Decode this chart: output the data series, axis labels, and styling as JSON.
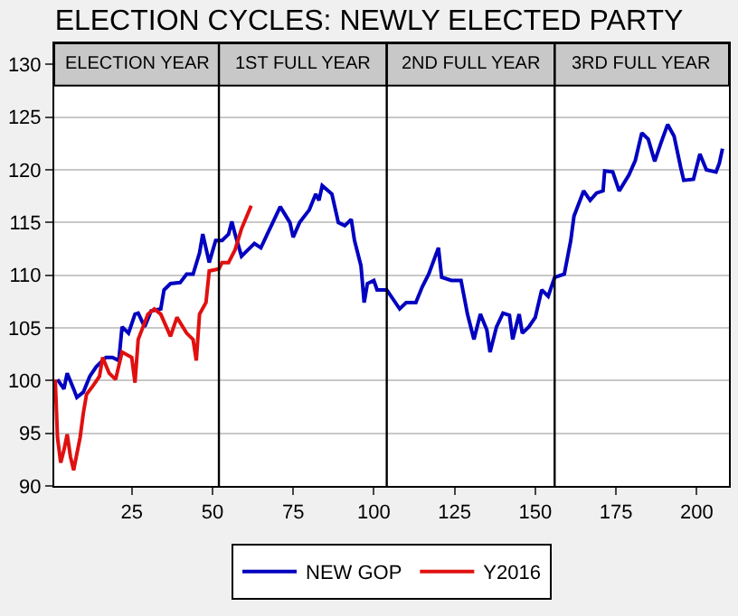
{
  "chart_data": {
    "type": "line",
    "title": "ELECTION CYCLES: NEWLY ELECTED PARTY",
    "xlim": [
      1,
      210
    ],
    "xticks": [
      25,
      50,
      75,
      100,
      125,
      150,
      175,
      200
    ],
    "ylim": [
      90,
      132
    ],
    "yticks": [
      90,
      95,
      100,
      105,
      110,
      115,
      120,
      125,
      130
    ],
    "grid": "y",
    "legend": "bottom",
    "line_style": "solid",
    "marker": "none",
    "series": [
      {
        "name": "NEW GOP",
        "color": "#0000c0",
        "x": [
          2,
          4,
          5,
          7,
          8,
          10,
          12,
          14,
          17,
          19,
          21,
          22,
          24,
          26,
          27,
          29,
          31,
          34,
          35,
          37,
          40,
          42,
          44,
          46,
          47,
          49,
          51,
          53,
          55,
          56,
          57,
          59,
          61,
          63,
          65,
          67,
          71,
          74,
          75,
          77,
          80,
          82,
          83,
          84,
          87,
          89,
          91,
          93,
          94,
          96,
          97,
          98,
          100,
          101,
          104,
          108,
          110,
          113,
          115,
          117,
          120,
          121,
          124,
          127,
          129,
          131,
          133,
          135,
          136,
          138,
          140,
          142,
          143,
          145,
          146,
          148,
          150,
          152,
          154,
          156,
          159,
          161,
          162,
          165,
          167,
          169,
          171,
          171.5,
          174,
          176,
          179,
          181,
          183,
          185,
          187,
          189,
          191,
          193,
          195,
          196,
          199,
          201,
          203,
          206,
          207,
          208
        ],
        "values": [
          100.1,
          99.2,
          100.7,
          99.2,
          98.4,
          98.9,
          100.4,
          101.3,
          102.2,
          102.2,
          101.9,
          105.1,
          104.5,
          106.3,
          106.4,
          105.1,
          106.6,
          106.8,
          108.6,
          109.2,
          109.3,
          110.1,
          110.1,
          112.1,
          113.9,
          111.2,
          113.3,
          113.3,
          113.9,
          115.1,
          113.9,
          111.8,
          112.4,
          113.0,
          112.6,
          113.9,
          116.5,
          115.0,
          113.6,
          115.0,
          116.2,
          117.7,
          117.1,
          118.5,
          117.7,
          115.0,
          114.7,
          115.3,
          113.3,
          110.9,
          107.4,
          109.2,
          109.5,
          108.6,
          108.6,
          106.8,
          107.4,
          107.4,
          108.9,
          110.1,
          112.6,
          109.8,
          109.5,
          109.5,
          106.3,
          103.9,
          106.3,
          104.8,
          102.7,
          105.1,
          106.4,
          106.2,
          103.9,
          106.3,
          104.5,
          105.1,
          106.0,
          108.6,
          108.0,
          109.8,
          110.1,
          113.3,
          115.6,
          118.0,
          117.1,
          117.8,
          118.0,
          119.9,
          119.8,
          118.0,
          119.5,
          120.9,
          123.5,
          122.9,
          120.8,
          122.6,
          124.3,
          123.2,
          120.3,
          119.0,
          119.1,
          121.5,
          120.0,
          119.8,
          120.6,
          122.0
        ]
      },
      {
        "name": "Y2016",
        "color": "#e01010",
        "x": [
          1.3,
          2,
          3,
          4,
          5,
          6,
          7,
          9,
          10,
          11,
          13,
          15,
          16,
          18,
          20,
          22,
          25,
          26,
          27,
          30,
          32,
          34,
          37,
          39,
          42,
          44,
          45,
          46,
          48,
          49,
          52,
          53,
          55,
          57,
          59,
          62
        ],
        "values": [
          100.1,
          94.6,
          92.2,
          93.4,
          94.9,
          92.8,
          91.5,
          94.6,
          96.9,
          98.7,
          99.5,
          100.4,
          102.2,
          100.7,
          100.1,
          102.7,
          102.2,
          99.8,
          103.9,
          106.3,
          106.8,
          106.3,
          104.2,
          106.0,
          104.5,
          103.9,
          101.9,
          106.3,
          107.4,
          110.4,
          110.6,
          111.2,
          111.2,
          112.4,
          114.4,
          116.6
        ]
      }
    ],
    "ref_lines": [
      {
        "axis": "x",
        "value": 52,
        "color": "#000000"
      },
      {
        "axis": "x",
        "value": 104,
        "color": "#000000"
      },
      {
        "axis": "x",
        "value": 156,
        "color": "#000000"
      }
    ],
    "bands": [
      {
        "axis": "x",
        "from": 1,
        "to": 52,
        "label": "ELECTION YEAR",
        "color": "#c8c8c8"
      },
      {
        "axis": "x",
        "from": 52,
        "to": 104,
        "label": "1ST FULL YEAR",
        "color": "#c8c8c8"
      },
      {
        "axis": "x",
        "from": 104,
        "to": 156,
        "label": "2ND FULL YEAR",
        "color": "#c8c8c8"
      },
      {
        "axis": "x",
        "from": 156,
        "to": 210,
        "label": "3RD FULL YEAR",
        "color": "#c8c8c8"
      }
    ]
  }
}
